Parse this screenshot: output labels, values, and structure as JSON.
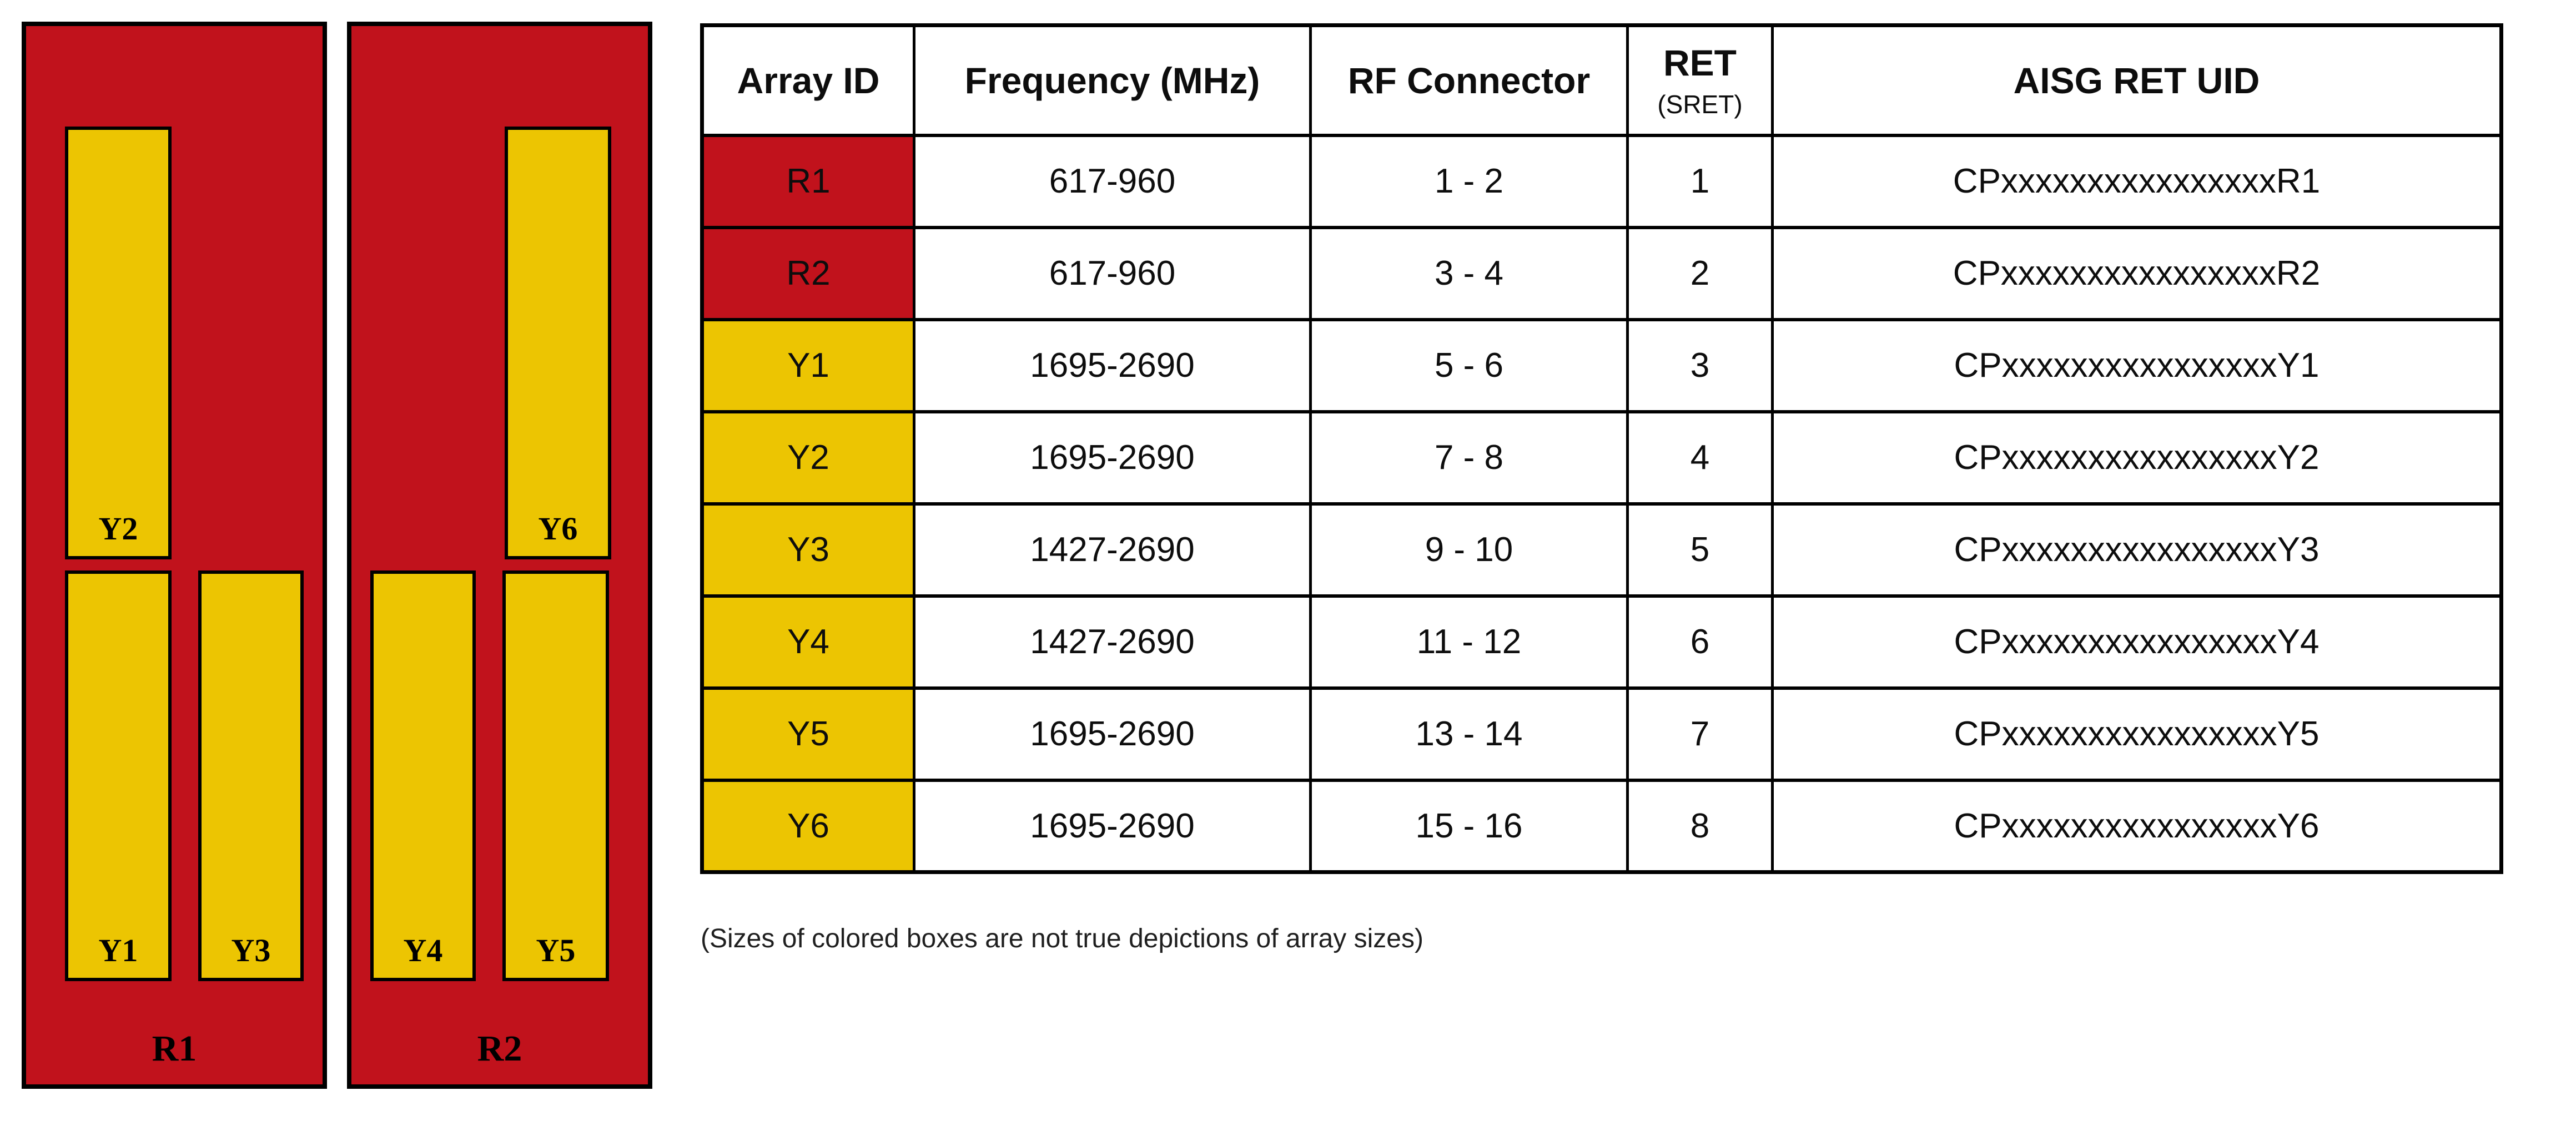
{
  "colors": {
    "red": "#c1121c",
    "yellow": "#ecc502",
    "line": "#000000",
    "note_text": "#1f1f1f"
  },
  "diagram": {
    "panels": [
      {
        "label": "R1",
        "arrays": [
          {
            "label": "Y2",
            "pos": "top-left"
          },
          {
            "label": "Y1",
            "pos": "bottom-left"
          },
          {
            "label": "Y3",
            "pos": "bottom-right"
          }
        ]
      },
      {
        "label": "R2",
        "arrays": [
          {
            "label": "Y6",
            "pos": "top-right"
          },
          {
            "label": "Y4",
            "pos": "bottom-left"
          },
          {
            "label": "Y5",
            "pos": "bottom-right"
          }
        ]
      }
    ]
  },
  "table": {
    "headers": {
      "array_id": "Array ID",
      "frequency": "Frequency (MHz)",
      "rf_connector": "RF Connector",
      "ret": "RET",
      "ret_sub": "(SRET)",
      "aisg": "AISG RET UID"
    },
    "rows": [
      {
        "array_id": "R1",
        "color": "red",
        "frequency": "617-960",
        "rf_connector": "1 - 2",
        "ret": "1",
        "aisg_ret_uid": "CPxxxxxxxxxxxxxxxxR1"
      },
      {
        "array_id": "R2",
        "color": "red",
        "frequency": "617-960",
        "rf_connector": "3 - 4",
        "ret": "2",
        "aisg_ret_uid": "CPxxxxxxxxxxxxxxxxR2"
      },
      {
        "array_id": "Y1",
        "color": "yellow",
        "frequency": "1695-2690",
        "rf_connector": "5 - 6",
        "ret": "3",
        "aisg_ret_uid": "CPxxxxxxxxxxxxxxxxY1"
      },
      {
        "array_id": "Y2",
        "color": "yellow",
        "frequency": "1695-2690",
        "rf_connector": "7 - 8",
        "ret": "4",
        "aisg_ret_uid": "CPxxxxxxxxxxxxxxxxY2"
      },
      {
        "array_id": "Y3",
        "color": "yellow",
        "frequency": "1427-2690",
        "rf_connector": "9 - 10",
        "ret": "5",
        "aisg_ret_uid": "CPxxxxxxxxxxxxxxxxY3"
      },
      {
        "array_id": "Y4",
        "color": "yellow",
        "frequency": "1427-2690",
        "rf_connector": "11 - 12",
        "ret": "6",
        "aisg_ret_uid": "CPxxxxxxxxxxxxxxxxY4"
      },
      {
        "array_id": "Y5",
        "color": "yellow",
        "frequency": "1695-2690",
        "rf_connector": "13 - 14",
        "ret": "7",
        "aisg_ret_uid": "CPxxxxxxxxxxxxxxxxY5"
      },
      {
        "array_id": "Y6",
        "color": "yellow",
        "frequency": "1695-2690",
        "rf_connector": "15 - 16",
        "ret": "8",
        "aisg_ret_uid": "CPxxxxxxxxxxxxxxxxY6"
      }
    ]
  },
  "note": "(Sizes of colored boxes are not true depictions of array sizes)"
}
